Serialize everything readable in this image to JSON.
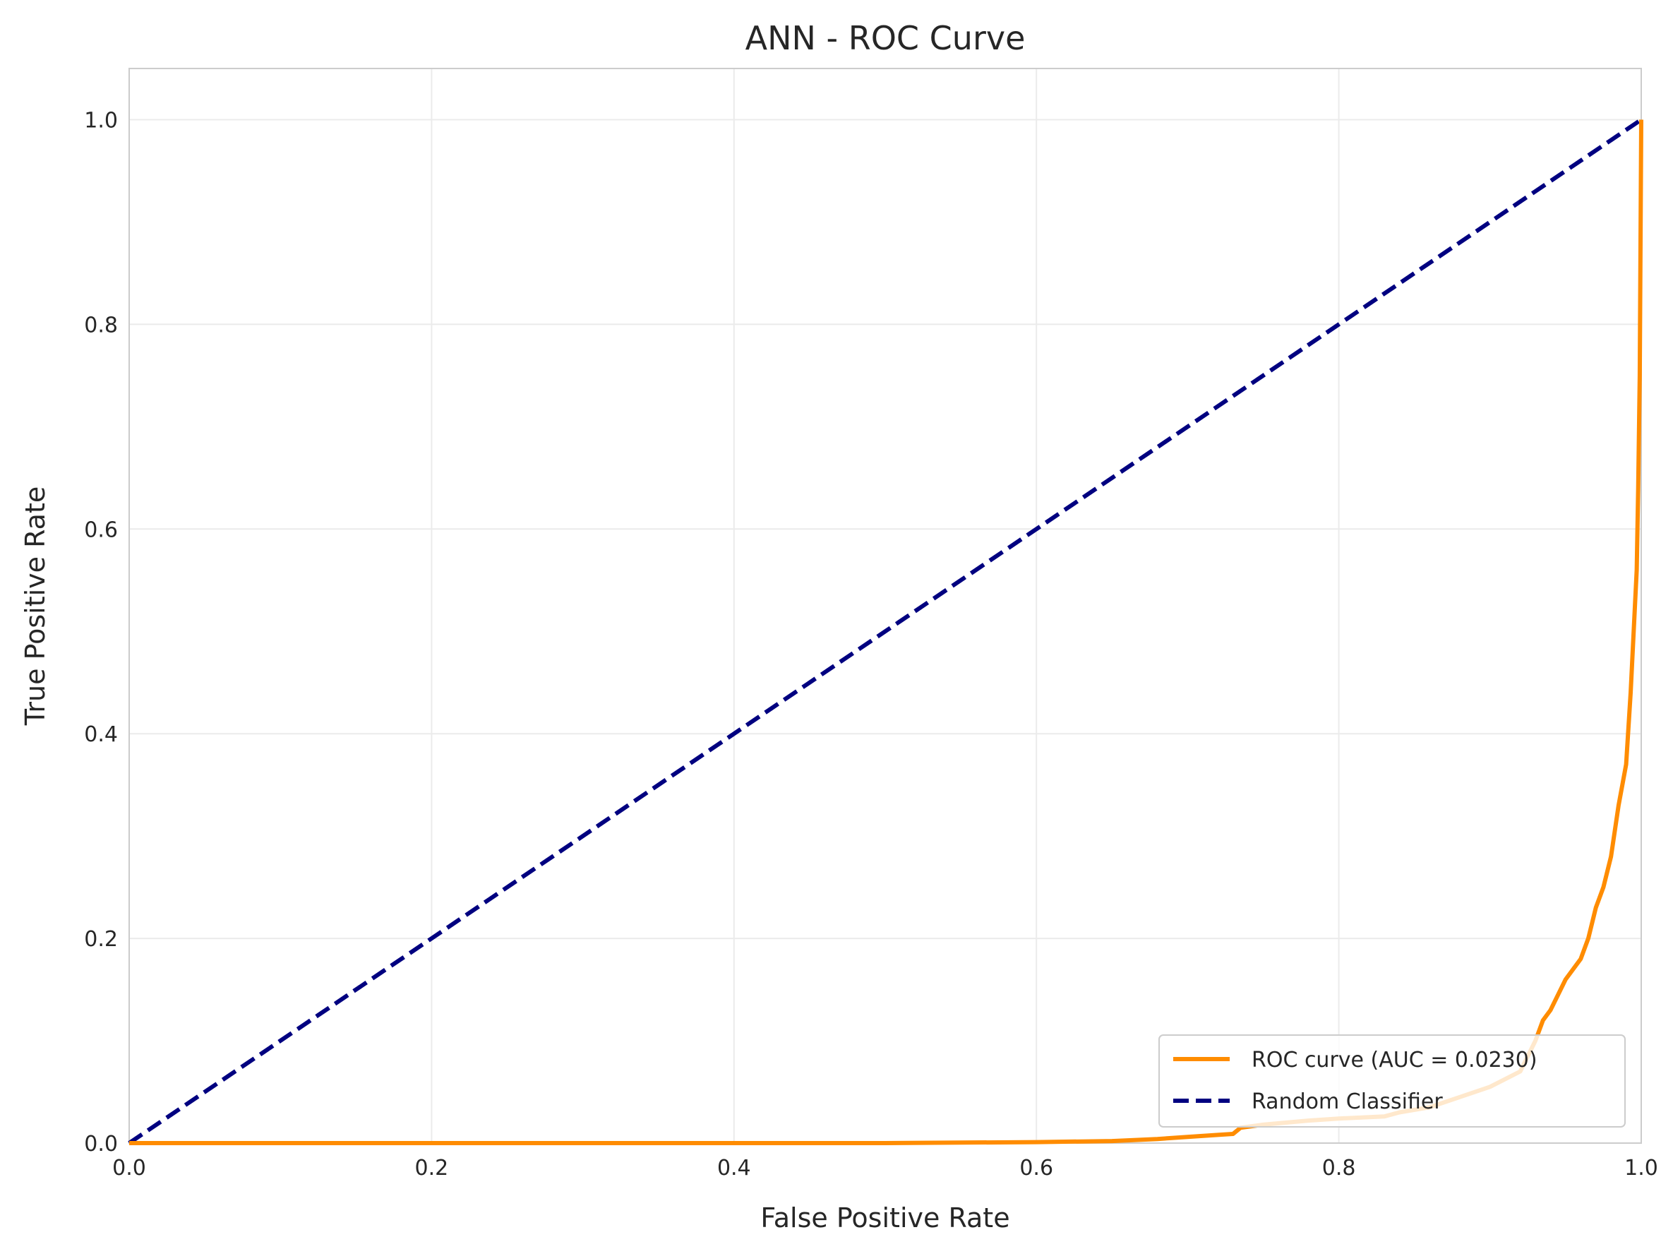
{
  "chart_data": {
    "type": "line",
    "title": "ANN - ROC Curve",
    "xlabel": "False Positive Rate",
    "ylabel": "True Positive Rate",
    "xlim": [
      0,
      1
    ],
    "ylim": [
      0,
      1.05
    ],
    "xticks": [
      "0.0",
      "0.2",
      "0.4",
      "0.6",
      "0.8",
      "1.0"
    ],
    "yticks": [
      "0.0",
      "0.2",
      "0.4",
      "0.6",
      "0.8",
      "1.0"
    ],
    "grid": true,
    "legend_position": "lower-right",
    "series": [
      {
        "name": "ROC curve (AUC = 0.0230)",
        "color": "#ff8c00",
        "style": "solid",
        "x": [
          0,
          0.5,
          0.6,
          0.65,
          0.68,
          0.7,
          0.72,
          0.73,
          0.735,
          0.75,
          0.78,
          0.8,
          0.83,
          0.84,
          0.86,
          0.88,
          0.9,
          0.92,
          0.93,
          0.935,
          0.94,
          0.95,
          0.96,
          0.965,
          0.97,
          0.975,
          0.98,
          0.985,
          0.99,
          0.993,
          0.995,
          0.997,
          0.998,
          0.999,
          1.0
        ],
        "y": [
          0,
          0,
          0.001,
          0.002,
          0.004,
          0.006,
          0.008,
          0.009,
          0.015,
          0.018,
          0.022,
          0.024,
          0.026,
          0.03,
          0.035,
          0.045,
          0.055,
          0.07,
          0.1,
          0.12,
          0.13,
          0.16,
          0.18,
          0.2,
          0.23,
          0.25,
          0.28,
          0.33,
          0.37,
          0.44,
          0.5,
          0.56,
          0.64,
          0.75,
          1.0
        ]
      },
      {
        "name": "Random Classifier",
        "color": "#000080",
        "style": "dashed",
        "x": [
          0,
          1
        ],
        "y": [
          0,
          1
        ]
      }
    ]
  }
}
